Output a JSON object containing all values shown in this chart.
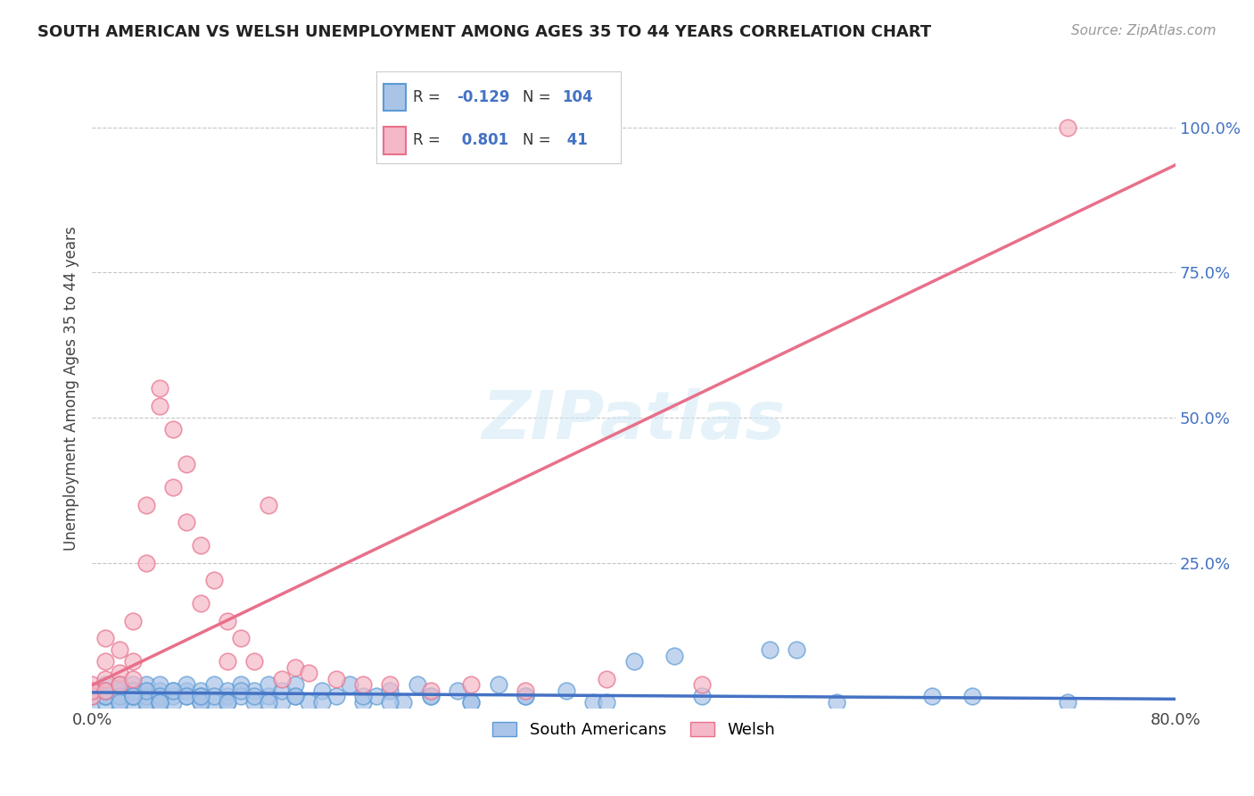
{
  "title": "SOUTH AMERICAN VS WELSH UNEMPLOYMENT AMONG AGES 35 TO 44 YEARS CORRELATION CHART",
  "source": "Source: ZipAtlas.com",
  "ylabel": "Unemployment Among Ages 35 to 44 years",
  "xlim": [
    0.0,
    0.8
  ],
  "ylim": [
    0.0,
    1.1
  ],
  "R_south": -0.129,
  "N_south": 104,
  "R_welsh": 0.801,
  "N_welsh": 41,
  "blue_color": "#4472c4",
  "pink_color": "#e8708a",
  "background_color": "#ffffff",
  "grid_color": "#c0c0c0",
  "sa_face": "#aac4e8",
  "sa_edge": "#5b9bd5",
  "welsh_face": "#f4b8c8",
  "welsh_edge": "#e8708a",
  "sa_x": [
    0.0,
    0.0,
    0.0,
    0.01,
    0.01,
    0.01,
    0.01,
    0.01,
    0.02,
    0.02,
    0.02,
    0.02,
    0.02,
    0.02,
    0.03,
    0.03,
    0.03,
    0.03,
    0.04,
    0.04,
    0.04,
    0.04,
    0.05,
    0.05,
    0.05,
    0.05,
    0.06,
    0.06,
    0.06,
    0.07,
    0.07,
    0.07,
    0.08,
    0.08,
    0.08,
    0.09,
    0.09,
    0.1,
    0.1,
    0.1,
    0.11,
    0.11,
    0.12,
    0.12,
    0.13,
    0.13,
    0.14,
    0.14,
    0.15,
    0.15,
    0.16,
    0.17,
    0.18,
    0.19,
    0.2,
    0.21,
    0.22,
    0.23,
    0.24,
    0.25,
    0.27,
    0.28,
    0.3,
    0.32,
    0.35,
    0.37,
    0.4,
    0.43,
    0.5,
    0.52,
    0.62,
    0.01,
    0.01,
    0.02,
    0.02,
    0.03,
    0.03,
    0.04,
    0.04,
    0.05,
    0.05,
    0.06,
    0.07,
    0.08,
    0.09,
    0.1,
    0.11,
    0.12,
    0.13,
    0.15,
    0.17,
    0.2,
    0.22,
    0.25,
    0.28,
    0.32,
    0.38,
    0.45,
    0.55,
    0.65,
    0.72,
    0.03,
    0.05,
    0.08
  ],
  "sa_y": [
    0.02,
    0.03,
    0.01,
    0.04,
    0.02,
    0.03,
    0.01,
    0.02,
    0.04,
    0.03,
    0.02,
    0.03,
    0.01,
    0.04,
    0.02,
    0.03,
    0.01,
    0.04,
    0.03,
    0.01,
    0.02,
    0.04,
    0.02,
    0.03,
    0.01,
    0.04,
    0.02,
    0.03,
    0.01,
    0.03,
    0.02,
    0.04,
    0.01,
    0.03,
    0.02,
    0.04,
    0.01,
    0.02,
    0.03,
    0.01,
    0.04,
    0.02,
    0.03,
    0.01,
    0.02,
    0.04,
    0.01,
    0.03,
    0.02,
    0.04,
    0.01,
    0.03,
    0.02,
    0.04,
    0.01,
    0.02,
    0.03,
    0.01,
    0.04,
    0.02,
    0.03,
    0.01,
    0.04,
    0.02,
    0.03,
    0.01,
    0.08,
    0.09,
    0.1,
    0.1,
    0.02,
    0.02,
    0.03,
    0.02,
    0.01,
    0.03,
    0.02,
    0.01,
    0.03,
    0.02,
    0.01,
    0.03,
    0.02,
    0.01,
    0.02,
    0.01,
    0.03,
    0.02,
    0.01,
    0.02,
    0.01,
    0.02,
    0.01,
    0.02,
    0.01,
    0.02,
    0.01,
    0.02,
    0.01,
    0.02,
    0.01,
    0.02,
    0.01,
    0.02
  ],
  "welsh_x": [
    0.0,
    0.0,
    0.0,
    0.01,
    0.01,
    0.01,
    0.01,
    0.02,
    0.02,
    0.02,
    0.03,
    0.03,
    0.03,
    0.04,
    0.04,
    0.05,
    0.05,
    0.06,
    0.06,
    0.07,
    0.07,
    0.08,
    0.08,
    0.09,
    0.1,
    0.1,
    0.11,
    0.12,
    0.13,
    0.14,
    0.15,
    0.16,
    0.18,
    0.2,
    0.22,
    0.25,
    0.28,
    0.32,
    0.38,
    0.45,
    0.72
  ],
  "welsh_y": [
    0.04,
    0.02,
    0.03,
    0.08,
    0.12,
    0.05,
    0.03,
    0.1,
    0.06,
    0.04,
    0.15,
    0.08,
    0.05,
    0.35,
    0.25,
    0.52,
    0.55,
    0.48,
    0.38,
    0.32,
    0.42,
    0.28,
    0.18,
    0.22,
    0.15,
    0.08,
    0.12,
    0.08,
    0.35,
    0.05,
    0.07,
    0.06,
    0.05,
    0.04,
    0.04,
    0.03,
    0.04,
    0.03,
    0.05,
    0.04,
    1.0
  ]
}
